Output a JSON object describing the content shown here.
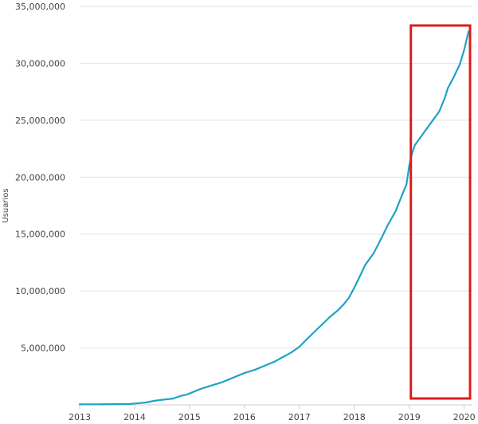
{
  "chart_data": {
    "type": "line",
    "title": "",
    "xlabel": "",
    "ylabel": "Usuarios",
    "x_ticks": [
      "2013",
      "2014",
      "2015",
      "2016",
      "2017",
      "2018",
      "2019",
      "2020"
    ],
    "y_ticks": [
      "5,000,000",
      "10,000,000",
      "15,000,000",
      "20,000,000",
      "25,000,000",
      "30,000,000",
      "35,000,000"
    ],
    "xlim": [
      2013.0,
      2020.15
    ],
    "ylim": [
      0,
      35000000
    ],
    "grid": true,
    "line_color": "#1fa2c4",
    "highlight": {
      "x_range": [
        2019.0,
        2020.15
      ],
      "color": "#e01b1b"
    },
    "series": [
      {
        "x": [
          2013.0,
          2013.3,
          2013.6,
          2013.9,
          2014.0,
          2014.2,
          2014.35,
          2014.5,
          2014.7,
          2014.85,
          2014.95,
          2015.05,
          2015.2,
          2015.4,
          2015.6,
          2015.8,
          2016.0,
          2016.2,
          2016.4,
          2016.55,
          2016.7,
          2016.85,
          2017.0,
          2017.1,
          2017.25,
          2017.4,
          2017.55,
          2017.7,
          2017.8,
          2017.9,
          2018.0,
          2018.1,
          2018.2,
          2018.35,
          2018.5,
          2018.6,
          2018.75,
          2018.85,
          2018.95,
          2019.0,
          2019.05,
          2019.1,
          2019.25,
          2019.4,
          2019.55,
          2019.65,
          2019.7,
          2019.8,
          2019.92,
          2020.0,
          2020.08
        ],
        "y": [
          50000,
          50000,
          60000,
          80000,
          120000,
          200000,
          350000,
          450000,
          550000,
          800000,
          900000,
          1100000,
          1400000,
          1700000,
          2000000,
          2400000,
          2800000,
          3100000,
          3500000,
          3800000,
          4200000,
          4600000,
          5100000,
          5600000,
          6300000,
          7000000,
          7700000,
          8300000,
          8800000,
          9400000,
          10300000,
          11300000,
          12300000,
          13300000,
          14700000,
          15700000,
          17000000,
          18200000,
          19400000,
          21000000,
          22100000,
          22800000,
          23800000,
          24800000,
          25800000,
          27000000,
          27800000,
          28700000,
          29900000,
          31200000,
          32800000
        ]
      }
    ]
  }
}
